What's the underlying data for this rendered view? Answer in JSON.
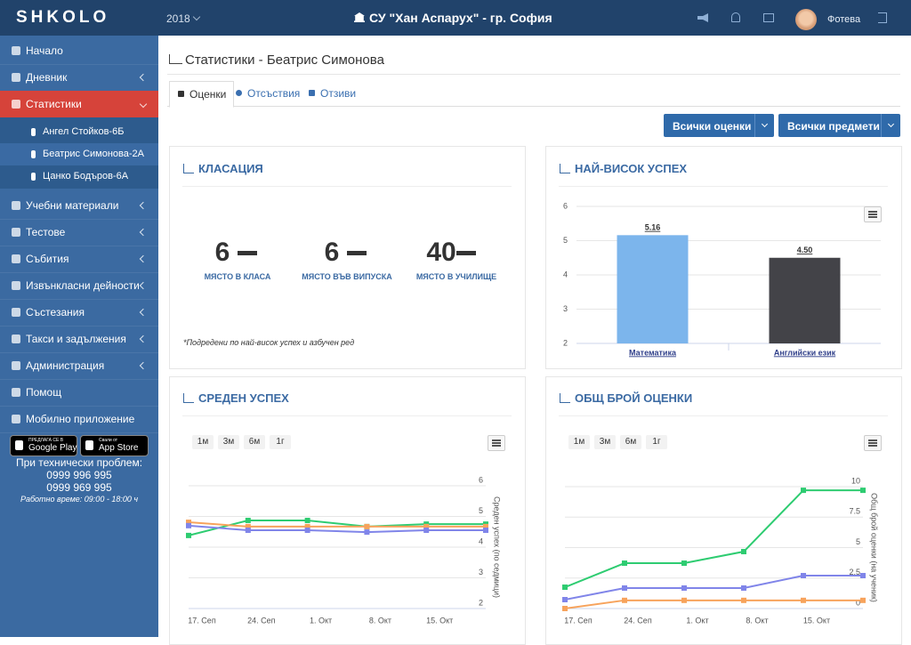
{
  "header": {
    "brand": "SHKOLO",
    "year": "2018",
    "school": "СУ \"Хан Аспарух\" - гр. София",
    "user": "Фотева"
  },
  "sidebar": {
    "items": [
      {
        "label": "Начало"
      },
      {
        "label": "Дневник",
        "expandable": true
      },
      {
        "label": "Статистики",
        "expandable": true,
        "active": true,
        "children": [
          {
            "label": "Ангел Стойков-6Б"
          },
          {
            "label": "Беатрис Симонова-2А",
            "selected": true
          },
          {
            "label": "Цанко Бодъров-6А"
          }
        ]
      },
      {
        "label": "Учебни материали",
        "expandable": true
      },
      {
        "label": "Тестове",
        "expandable": true
      },
      {
        "label": "Събития",
        "expandable": true
      },
      {
        "label": "Извънкласни дейности",
        "expandable": true
      },
      {
        "label": "Състезания",
        "expandable": true
      },
      {
        "label": "Такси и задължения",
        "expandable": true
      },
      {
        "label": "Администрация",
        "expandable": true
      },
      {
        "label": "Помощ"
      },
      {
        "label": "Мобилно приложение"
      }
    ],
    "store": {
      "google": {
        "small": "ПРЕДЛАГА СЕ В",
        "name": "Google Play"
      },
      "apple": {
        "small": "Свали от",
        "name": "App Store"
      }
    },
    "support": {
      "title": "При технически проблем:",
      "phones": [
        "0999 996 995",
        "0999 969 995"
      ],
      "hours": "Работно време: 09:00 - 18:00 ч"
    }
  },
  "page": {
    "title": "Статистики - Беатрис Симонова",
    "tabs": [
      "Оценки",
      "Отсъствия",
      "Отзиви"
    ],
    "filters": [
      "Всички оценки",
      "Всички предмети"
    ]
  },
  "ranking": {
    "title": "КЛАСАЦИЯ",
    "stats": [
      {
        "value": 6,
        "label": "МЯСТО В КЛАСА"
      },
      {
        "value": 6,
        "label": "МЯСТО ВЪВ ВИПУСКА"
      },
      {
        "value": 40,
        "label": "МЯСТО В УЧИЛИЩЕ"
      }
    ],
    "note": "*Подредени по най-висок успех и азбучен ред"
  },
  "best": {
    "title": "НАЙ-ВИСОК УСПЕХ",
    "chart": {
      "type": "bar",
      "categories": [
        "Математика",
        "Английски език"
      ],
      "values": [
        5.16,
        4.5
      ],
      "value_labels": [
        "5.16",
        "4.50"
      ],
      "colors": [
        "#7cb5ec",
        "#434348"
      ],
      "ylim": [
        2,
        6
      ],
      "yticks": [
        2,
        3,
        4,
        5,
        6
      ],
      "grid": true
    }
  },
  "average": {
    "title": "СРЕДЕН УСПЕХ",
    "ranges": [
      "1м",
      "3м",
      "6м",
      "1г"
    ],
    "chart": {
      "type": "line",
      "categories": [
        "17. Сеп",
        "24. Сеп",
        "1. Окт",
        "8. Окт",
        "15. Окт",
        null
      ],
      "series": [
        {
          "color": "#2ecc71",
          "values": [
            4.38,
            4.87,
            4.87,
            4.67,
            4.75,
            4.75
          ]
        },
        {
          "color": "#f7a35c",
          "values": [
            4.81,
            4.67,
            4.67,
            4.67,
            4.67,
            4.67
          ]
        },
        {
          "color": "#8085e9",
          "values": [
            4.7,
            4.55,
            4.55,
            4.49,
            4.55,
            4.55
          ]
        }
      ],
      "ylabel": "Среден успех (по седмици)",
      "ylim": [
        2,
        6
      ],
      "yticks": [
        2,
        3,
        4,
        5,
        6
      ],
      "grid": true
    }
  },
  "total": {
    "title": "ОБЩ БРОЙ ОЦЕНКИ",
    "ranges": [
      "1м",
      "3м",
      "6м",
      "1г"
    ],
    "chart": {
      "type": "line",
      "categories": [
        "17. Сеп",
        "24. Сеп",
        "1. Окт",
        "8. Окт",
        "15. Окт",
        null
      ],
      "series": [
        {
          "color": "#2ecc71",
          "values": [
            1.75,
            3.72,
            3.72,
            4.67,
            9.7,
            9.7
          ]
        },
        {
          "color": "#8085e9",
          "values": [
            0.73,
            1.68,
            1.68,
            1.68,
            2.7,
            2.7
          ]
        },
        {
          "color": "#f7a35c",
          "values": [
            0,
            0.67,
            0.67,
            0.67,
            0.67,
            0.67
          ]
        }
      ],
      "ylabel": "Общ брой оценки (на ученик)",
      "ylim": [
        0,
        10
      ],
      "yticks": [
        0,
        2.5,
        5,
        7.5,
        10
      ],
      "grid": true
    }
  }
}
